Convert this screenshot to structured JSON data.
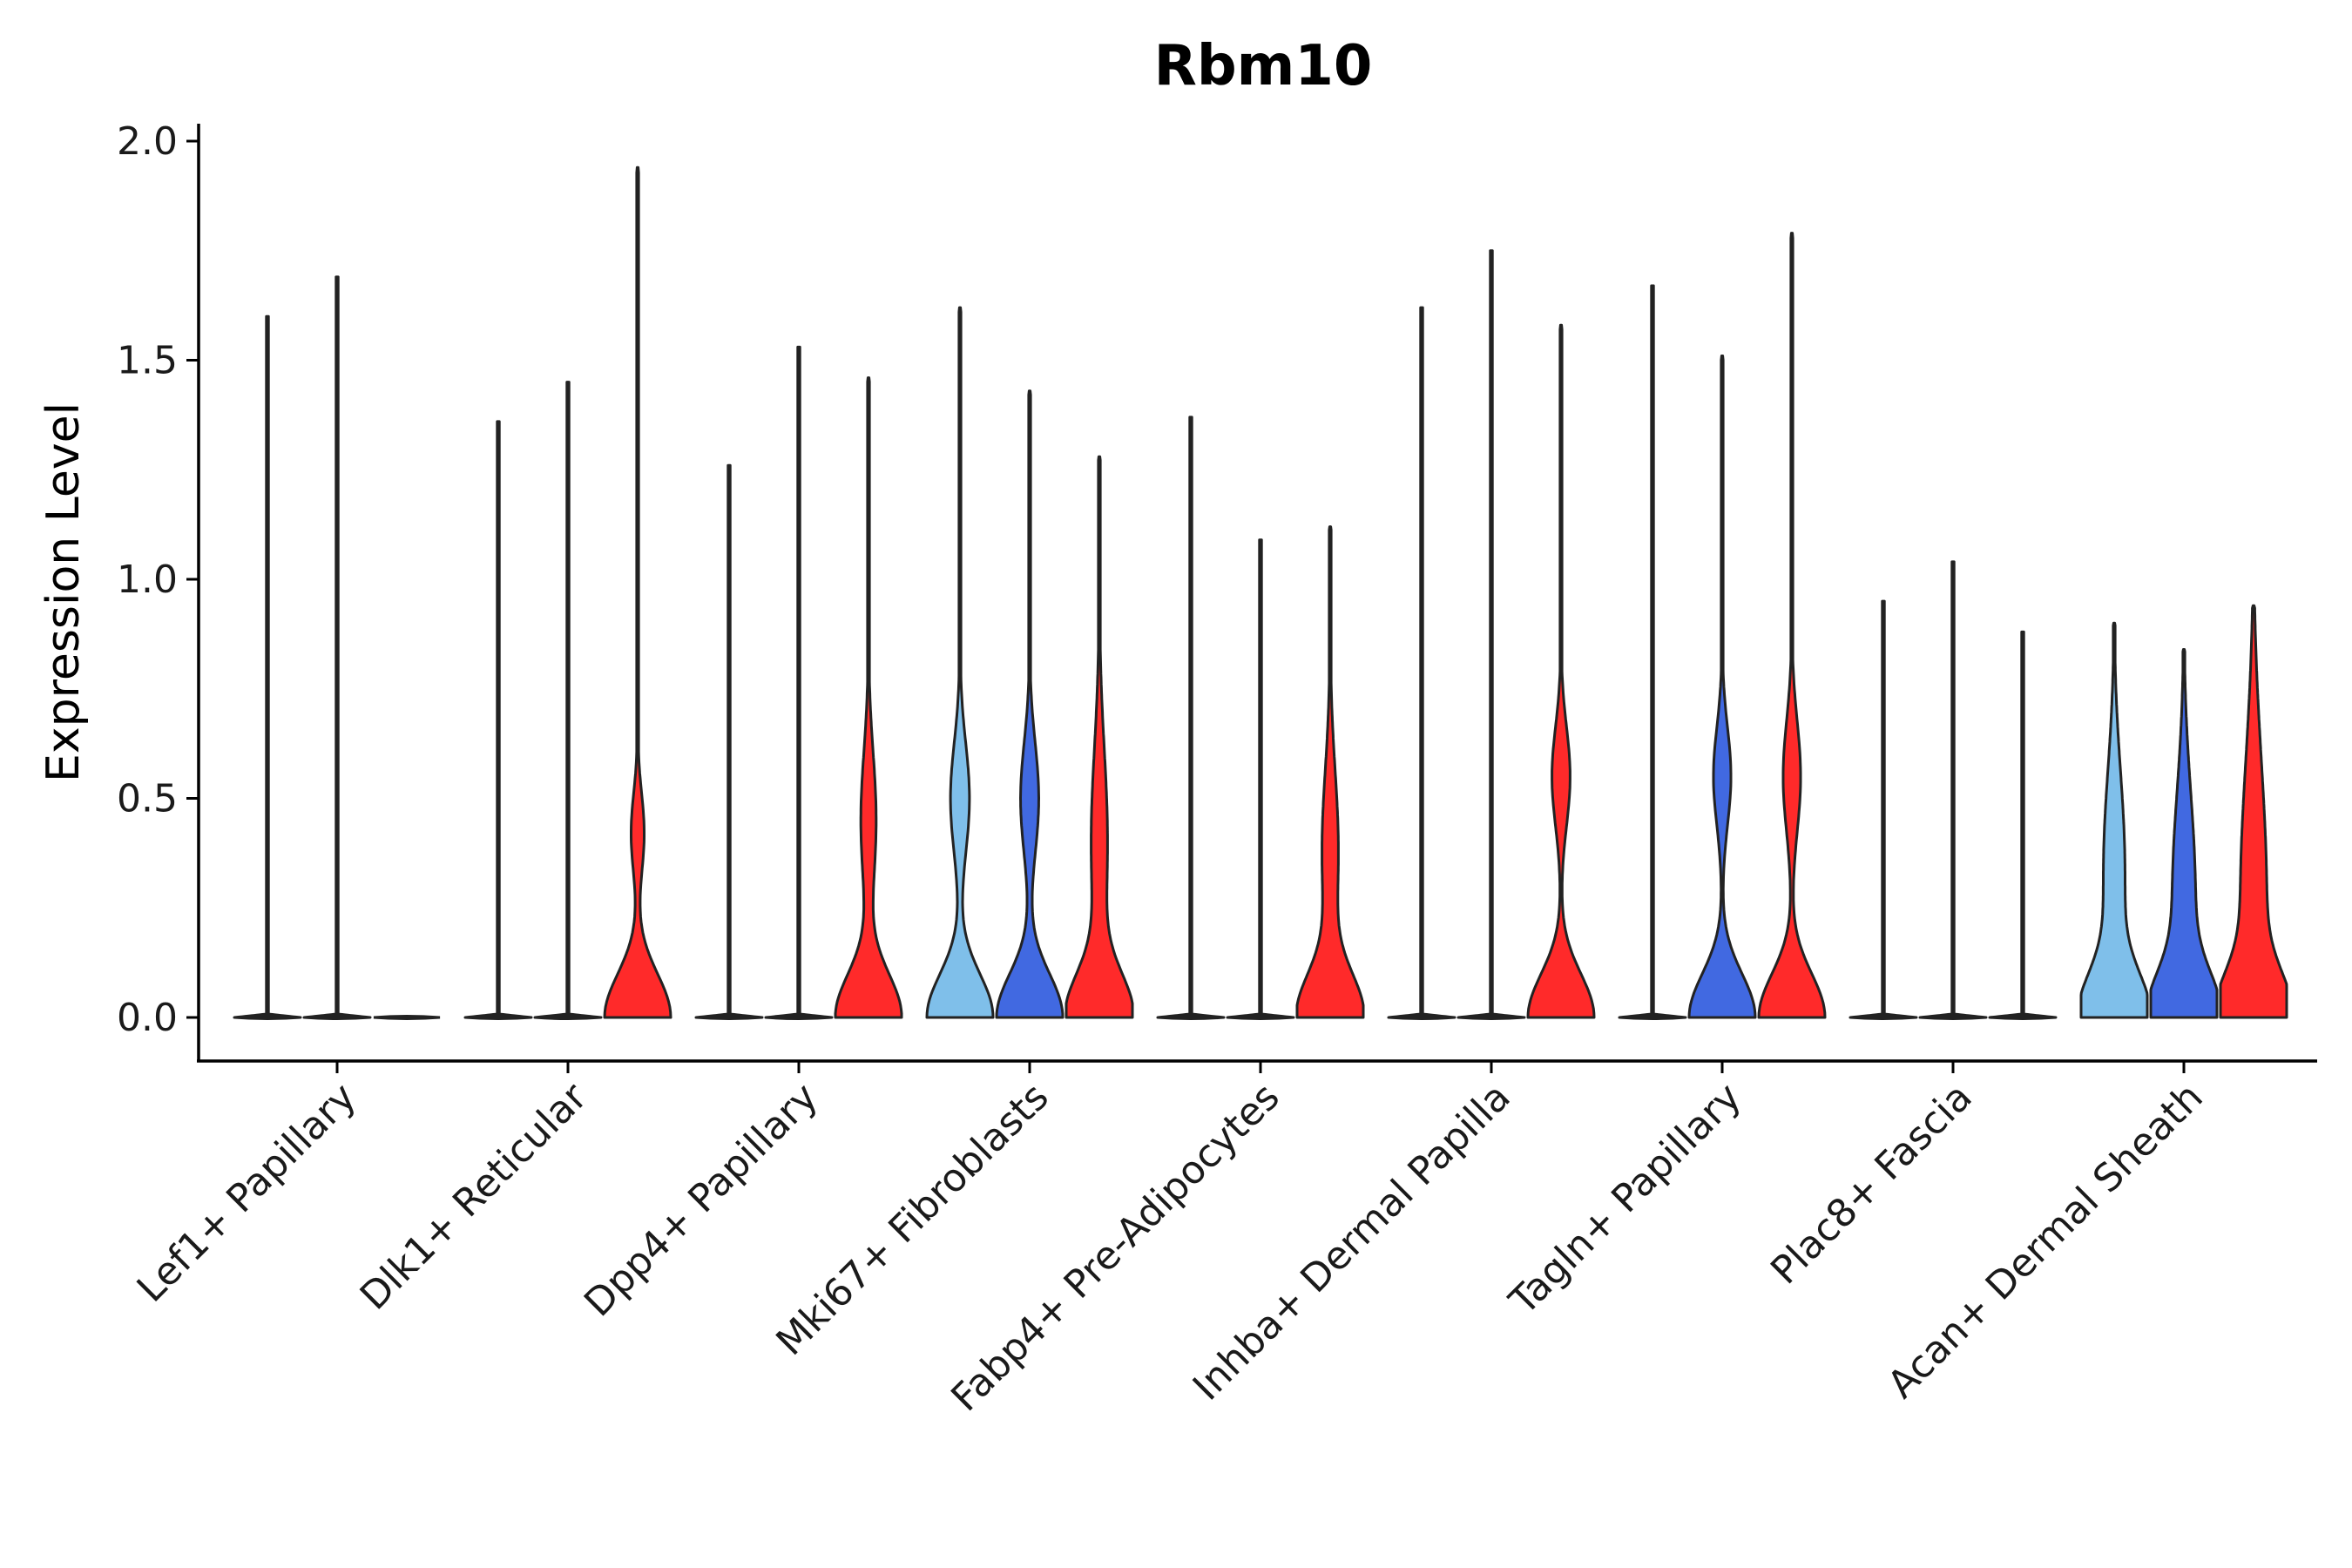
{
  "chart_data": {
    "type": "violin",
    "title": "Rbm10",
    "xlabel": "",
    "ylabel": "Expression Level",
    "ylim": [
      -0.1,
      2.05
    ],
    "yticks": [
      0.0,
      0.5,
      1.0,
      1.5,
      2.0
    ],
    "ytick_labels": [
      "0.0",
      "0.5",
      "1.0",
      "1.5",
      "2.0"
    ],
    "grid": false,
    "legend": "none",
    "colors": {
      "light_blue": "#7fbfea",
      "blue": "#4169e1",
      "red": "#ff2a2a",
      "outline": "#222222"
    },
    "categories": [
      "Lef1+ Papillary",
      "Dlk1+ Reticular",
      "Dpp4+ Papillary",
      "Mki67+ Fibroblasts",
      "Fabp4+ Pre-Adipocytes",
      "Inhba+ Dermal Papilla",
      "Tagln+ Papillary",
      "Plac8+ Fascia",
      "Acan+ Dermal Sheath"
    ],
    "groups": [
      {
        "category": "Lef1+ Papillary",
        "violins": [
          {
            "color": "light_blue",
            "max": 1.6,
            "shape": "flat"
          },
          {
            "color": "blue",
            "max": 1.69,
            "shape": "flat"
          },
          {
            "color": "red",
            "max": 0.0,
            "shape": "flat"
          }
        ]
      },
      {
        "category": "Dlk1+ Reticular",
        "violins": [
          {
            "color": "light_blue",
            "max": 1.36,
            "shape": "flat"
          },
          {
            "color": "blue",
            "max": 1.45,
            "shape": "flat"
          },
          {
            "color": "red",
            "max": 1.94,
            "shape": "lowbulb",
            "base": 0.36,
            "mode": 0.42,
            "modew": 0.05
          }
        ]
      },
      {
        "category": "Dpp4+ Papillary",
        "violins": [
          {
            "color": "light_blue",
            "max": 1.26,
            "shape": "flat"
          },
          {
            "color": "blue",
            "max": 1.53,
            "shape": "flat"
          },
          {
            "color": "red",
            "max": 1.46,
            "shape": "lowbulb",
            "base": 0.42,
            "mode": 0.45,
            "modew": 0.14
          }
        ]
      },
      {
        "category": "Mki67+ Fibroblasts",
        "violins": [
          {
            "color": "light_blue",
            "max": 1.62,
            "shape": "lowbulb",
            "base": 0.52,
            "mode": 0.5,
            "modew": 0.1
          },
          {
            "color": "blue",
            "max": 1.43,
            "shape": "lowbulb",
            "base": 0.5,
            "mode": 0.5,
            "modew": 0.1
          },
          {
            "color": "red",
            "max": 1.28,
            "shape": "lowbulb",
            "base": 0.45,
            "mode": 0.4,
            "modew": 0.22
          }
        ]
      },
      {
        "category": "Fabp4+ Pre-Adipocytes",
        "violins": [
          {
            "color": "light_blue",
            "max": 1.37,
            "shape": "flat"
          },
          {
            "color": "blue",
            "max": 1.09,
            "shape": "flat"
          },
          {
            "color": "red",
            "max": 1.12,
            "shape": "lowbulb",
            "base": 0.45,
            "mode": 0.38,
            "modew": 0.18
          }
        ]
      },
      {
        "category": "Inhba+ Dermal Papilla",
        "violins": [
          {
            "color": "light_blue",
            "max": 1.62,
            "shape": "flat"
          },
          {
            "color": "blue",
            "max": 1.75,
            "shape": "flat"
          },
          {
            "color": "red",
            "max": 1.58,
            "shape": "lowbulb",
            "base": 0.5,
            "mode": 0.55,
            "modew": 0.08
          }
        ]
      },
      {
        "category": "Tagln+ Papillary",
        "violins": [
          {
            "color": "light_blue",
            "max": 1.67,
            "shape": "flat"
          },
          {
            "color": "blue",
            "max": 1.51,
            "shape": "lowbulb",
            "base": 0.48,
            "mode": 0.55,
            "modew": 0.08
          },
          {
            "color": "red",
            "max": 1.79,
            "shape": "lowbulb",
            "base": 0.48,
            "mode": 0.55,
            "modew": 0.1
          }
        ]
      },
      {
        "category": "Plac8+ Fascia",
        "violins": [
          {
            "color": "light_blue",
            "max": 0.95,
            "shape": "flat"
          },
          {
            "color": "blue",
            "max": 1.04,
            "shape": "flat"
          },
          {
            "color": "red",
            "max": 0.88,
            "shape": "flat"
          }
        ]
      },
      {
        "category": "Acan+ Dermal Sheath",
        "violins": [
          {
            "color": "light_blue",
            "max": 0.9,
            "shape": "broad",
            "base": 0.45,
            "mode": 0.4,
            "modew": 0.2
          },
          {
            "color": "blue",
            "max": 0.84,
            "shape": "broad",
            "base": 0.45,
            "mode": 0.35,
            "modew": 0.22
          },
          {
            "color": "red",
            "max": 0.94,
            "shape": "broad",
            "base": 0.55,
            "mode": 0.38,
            "modew": 0.3
          }
        ]
      }
    ]
  }
}
